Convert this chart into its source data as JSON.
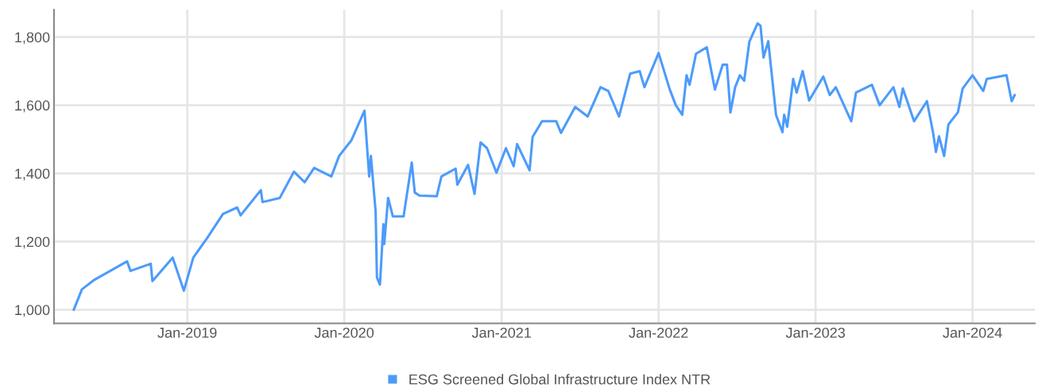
{
  "chart_data": {
    "type": "line",
    "x": [
      "2018-04-12",
      "2018-05-01",
      "2018-05-30",
      "2018-08-14",
      "2018-08-22",
      "2018-10-08",
      "2018-10-12",
      "2018-11-28",
      "2018-12-24",
      "2019-01-15",
      "2019-02-17",
      "2019-03-25",
      "2019-04-27",
      "2019-05-05",
      "2019-06-21",
      "2019-06-25",
      "2019-08-04",
      "2019-09-06",
      "2019-10-01",
      "2019-10-23",
      "2019-12-02",
      "2019-12-20",
      "2020-01-18",
      "2020-02-17",
      "2020-02-28",
      "2020-03-03",
      "2020-03-14",
      "2020-03-17",
      "2020-03-24",
      "2020-04-01",
      "2020-04-03",
      "2020-04-12",
      "2020-04-23",
      "2020-05-18",
      "2020-06-06",
      "2020-06-13",
      "2020-06-24",
      "2020-08-03",
      "2020-08-14",
      "2020-09-16",
      "2020-09-20",
      "2020-10-15",
      "2020-10-30",
      "2020-11-13",
      "2020-11-28",
      "2020-12-20",
      "2021-01-11",
      "2021-01-29",
      "2021-02-06",
      "2021-03-07",
      "2021-03-14",
      "2021-04-05",
      "2021-05-08",
      "2021-05-19",
      "2021-06-21",
      "2021-07-20",
      "2021-08-19",
      "2021-09-06",
      "2021-10-01",
      "2021-10-27",
      "2021-11-18",
      "2021-11-29",
      "2022-01-01",
      "2022-01-27",
      "2022-02-10",
      "2022-02-25",
      "2022-03-07",
      "2022-03-14",
      "2022-03-29",
      "2022-04-23",
      "2022-05-12",
      "2022-05-30",
      "2022-06-09",
      "2022-06-17",
      "2022-06-28",
      "2022-07-09",
      "2022-07-19",
      "2022-07-31",
      "2022-08-19",
      "2022-08-26",
      "2022-09-02",
      "2022-09-13",
      "2022-10-01",
      "2022-10-16",
      "2022-10-20",
      "2022-10-27",
      "2022-11-10",
      "2022-11-18",
      "2022-12-02",
      "2022-12-17",
      "2023-01-19",
      "2023-02-03",
      "2023-02-17",
      "2023-03-25",
      "2023-04-05",
      "2023-05-12",
      "2023-05-30",
      "2023-07-01",
      "2023-07-15",
      "2023-07-23",
      "2023-08-18",
      "2023-09-17",
      "2023-10-01",
      "2023-10-08",
      "2023-10-15",
      "2023-10-27",
      "2023-11-06",
      "2023-11-28",
      "2023-12-09",
      "2024-01-01",
      "2024-01-26",
      "2024-02-03",
      "2024-03-03",
      "2024-03-20",
      "2024-04-01",
      "2024-04-08"
    ],
    "series": [
      {
        "name": "ESG Screened Global Infrastructure Index NTR",
        "color": "#4c9bfb",
        "values": [
          1000,
          1060,
          1088,
          1142,
          1114,
          1135,
          1084,
          1153,
          1056,
          1153,
          1212,
          1281,
          1300,
          1277,
          1351,
          1316,
          1328,
          1405,
          1374,
          1416,
          1391,
          1451,
          1498,
          1584,
          1391,
          1451,
          1288,
          1095,
          1074,
          1251,
          1193,
          1328,
          1274,
          1274,
          1432,
          1344,
          1335,
          1333,
          1391,
          1414,
          1367,
          1425,
          1340,
          1491,
          1474,
          1402,
          1474,
          1421,
          1486,
          1409,
          1507,
          1553,
          1553,
          1519,
          1595,
          1567,
          1653,
          1642,
          1567,
          1693,
          1700,
          1653,
          1753,
          1646,
          1600,
          1572,
          1688,
          1660,
          1751,
          1770,
          1646,
          1719,
          1719,
          1579,
          1653,
          1688,
          1672,
          1786,
          1840,
          1833,
          1740,
          1788,
          1572,
          1521,
          1572,
          1537,
          1677,
          1637,
          1700,
          1614,
          1684,
          1630,
          1653,
          1553,
          1637,
          1660,
          1600,
          1653,
          1595,
          1649,
          1553,
          1612,
          1521,
          1463,
          1509,
          1451,
          1544,
          1579,
          1649,
          1688,
          1642,
          1677,
          1684,
          1688,
          1612,
          1630
        ]
      }
    ],
    "xlim": [
      "2018-02-25",
      "2024-05-25"
    ],
    "xticks": [
      {
        "value": "2019-01-01",
        "label": "Jan-2019"
      },
      {
        "value": "2020-01-01",
        "label": "Jan-2020"
      },
      {
        "value": "2021-01-01",
        "label": "Jan-2021"
      },
      {
        "value": "2022-01-01",
        "label": "Jan-2022"
      },
      {
        "value": "2023-01-01",
        "label": "Jan-2023"
      },
      {
        "value": "2024-01-01",
        "label": "Jan-2024"
      }
    ],
    "ylim": [
      960,
      1880
    ],
    "yticks": [
      {
        "value": 1000,
        "label": "1,000"
      },
      {
        "value": 1200,
        "label": "1,200"
      },
      {
        "value": 1400,
        "label": "1,400"
      },
      {
        "value": 1600,
        "label": "1,600"
      },
      {
        "value": 1800,
        "label": "1,800"
      }
    ],
    "grid": true,
    "legend": "bottom",
    "marker": "none",
    "line_style": "solid"
  }
}
